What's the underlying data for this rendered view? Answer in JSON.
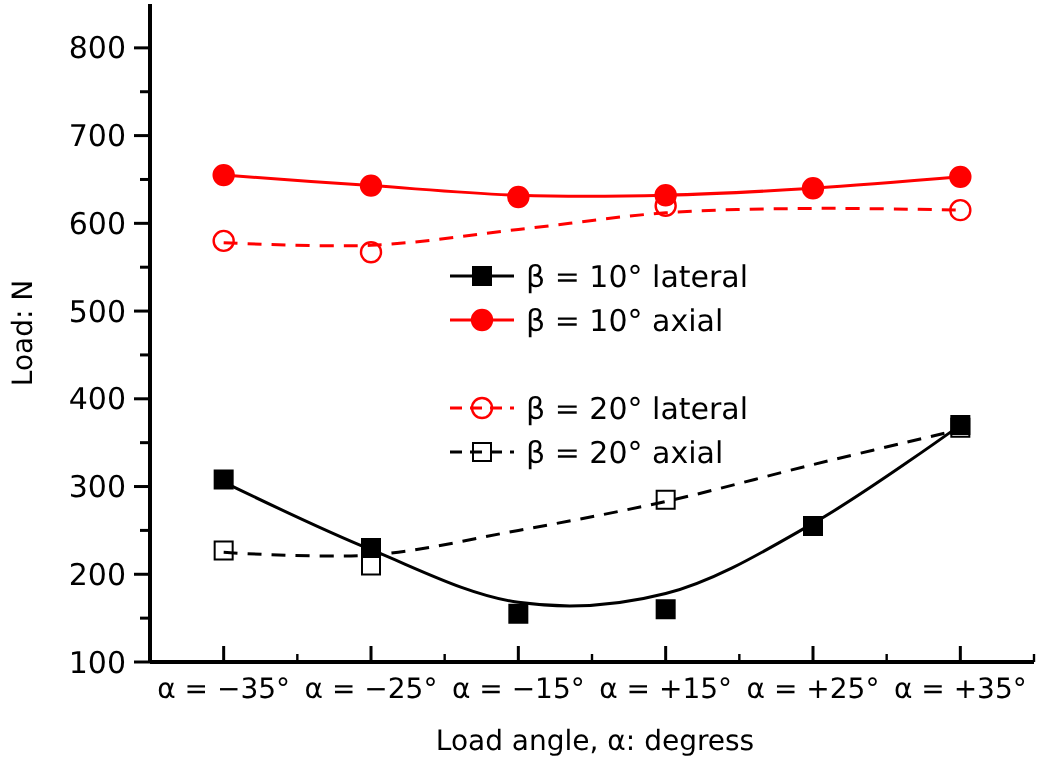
{
  "chart_data": {
    "type": "scatter",
    "xlabel": "Load angle, α: degress",
    "ylabel": "Load: N",
    "categories": [
      "α = −35°",
      "α = −25°",
      "α = −15°",
      "α = +15°",
      "α = +25°",
      "α = +35°"
    ],
    "ylim": [
      100,
      850
    ],
    "yticks": [
      {
        "value": 100,
        "label": "100"
      },
      {
        "value": 150,
        "label": null
      },
      {
        "value": 200,
        "label": "200"
      },
      {
        "value": 250,
        "label": null
      },
      {
        "value": 300,
        "label": "300"
      },
      {
        "value": 350,
        "label": null
      },
      {
        "value": 400,
        "label": "400"
      },
      {
        "value": 450,
        "label": null
      },
      {
        "value": 500,
        "label": "500"
      },
      {
        "value": 550,
        "label": null
      },
      {
        "value": 600,
        "label": "600"
      },
      {
        "value": 650,
        "label": null
      },
      {
        "value": 700,
        "label": "700"
      },
      {
        "value": 750,
        "label": null
      },
      {
        "value": 800,
        "label": "800"
      }
    ],
    "grid": false,
    "legend": "center",
    "series": [
      {
        "name": "β = 10° lateral",
        "color": "#000000",
        "marker": "square",
        "line_style": "solid",
        "values": [
          308,
          230,
          155,
          160,
          255,
          370
        ]
      },
      {
        "name": "β = 10° axial",
        "color": "#ff0000",
        "marker": "circle",
        "line_style": "solid",
        "values": [
          655,
          643,
          630,
          632,
          640,
          653
        ]
      },
      {
        "name": "β = 20° lateral",
        "color": "#ff0000",
        "marker": "circle",
        "line_style": "dashed",
        "values": [
          580,
          567,
          null,
          620,
          null,
          615
        ]
      },
      {
        "name": "β = 20° axial",
        "color": "#000000",
        "marker": "square",
        "line_style": "dashed",
        "values": [
          227,
          210,
          null,
          285,
          null,
          367
        ]
      },
      {
        "type": "line",
        "color": "#000000",
        "line_style": "solid",
        "values": [
          305,
          228,
          168,
          178,
          258,
          370
        ]
      },
      {
        "type": "line",
        "color": "#ff0000",
        "line_style": "solid",
        "values": [
          655,
          643,
          632,
          632,
          640,
          653
        ]
      },
      {
        "type": "line",
        "color": "#ff0000",
        "line_style": "dashed",
        "values": [
          578,
          575,
          593,
          612,
          617,
          615
        ]
      },
      {
        "type": "line",
        "color": "#000000",
        "line_style": "dashed",
        "values": [
          225,
          222,
          250,
          283,
          325,
          365
        ]
      }
    ]
  }
}
